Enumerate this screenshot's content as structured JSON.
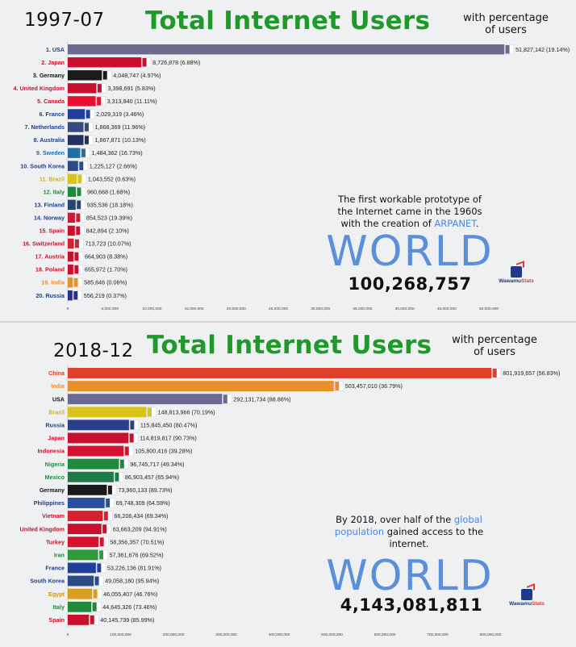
{
  "chart_data": [
    {
      "type": "bar",
      "orientation": "horizontal",
      "period": "1997-07",
      "title": "Total Internet Users",
      "subtitle": "with percentage of users",
      "annotation": {
        "before": "The first workable prototype of the Internet came in the 1960s with the creation of ",
        "highlight": "ARPANET",
        "after": "."
      },
      "world_label": "WORLD",
      "world_total": "100,268,757",
      "brand": "WawamuStats",
      "xlim": [
        0,
        50000000
      ],
      "x_ticks": [
        "0",
        "5,000,000",
        "10,000,000",
        "15,000,000",
        "20,000,000",
        "25,000,000",
        "30,000,000",
        "35,000,000",
        "40,000,000",
        "45,000,000",
        "50,000,000"
      ],
      "categories": [
        "1. USA",
        "2. Japan",
        "3. Germany",
        "4. United Kingdom",
        "5. Canada",
        "6. France",
        "7. Netherlands",
        "8. Australia",
        "9. Sweden",
        "10. South Korea",
        "11. Brazil",
        "12. Italy",
        "13. Finland",
        "14. Norway",
        "15. Spain",
        "16. Switzerland",
        "17. Austria",
        "18. Poland",
        "19. India",
        "20. Russia"
      ],
      "values": [
        51827142,
        8726878,
        4048747,
        3398691,
        3313840,
        2029319,
        1868369,
        1867871,
        1484362,
        1225127,
        1043552,
        960668,
        935536,
        854523,
        842894,
        713723,
        664903,
        655972,
        585646,
        556219
      ],
      "value_labels": [
        "51,827,142 (19.14%)",
        "8,726,878 (6.88%)",
        "4,048,747 (4.97%)",
        "3,398,691 (5.83%)",
        "3,313,840 (11.11%)",
        "2,029,319 (3.46%)",
        "1,868,369 (11.96%)",
        "1,867,871 (10.13%)",
        "1,484,362 (16.73%)",
        "1,225,127 (2.66%)",
        "1,043,552 (0.63%)",
        "960,668 (1.68%)",
        "935,536 (18.18%)",
        "854,523 (19.39%)",
        "842,894 (2.10%)",
        "713,723 (10.07%)",
        "664,903 (8.38%)",
        "655,972 (1.70%)",
        "585,646 (0.06%)",
        "556,219 (0.37%)"
      ],
      "colors": [
        "#6a6a92",
        "#c8102e",
        "#1a1a1a",
        "#c8102e",
        "#e8102e",
        "#1f3f9a",
        "#344a80",
        "#23305f",
        "#1f6fa8",
        "#2b4a86",
        "#d8c31a",
        "#1f8a3c",
        "#24466f",
        "#c21e3a",
        "#c8102e",
        "#d6202e",
        "#c8102e",
        "#c8102e",
        "#e8902a",
        "#27318a"
      ],
      "label_colors": [
        "#1f3f8a",
        "#c8102e",
        "#111111",
        "#c8102e",
        "#c8102e",
        "#1f3f8a",
        "#1f3f8a",
        "#1f3f8a",
        "#1f6fa8",
        "#1f3f8a",
        "#c9b81a",
        "#1f8a3c",
        "#1f3f8a",
        "#1f3f8a",
        "#c8102e",
        "#c8102e",
        "#c8102e",
        "#c8102e",
        "#e8902a",
        "#1f3f8a"
      ],
      "grid": false,
      "legend": "none"
    },
    {
      "type": "bar",
      "orientation": "horizontal",
      "period": "2018-12",
      "title": "Total Internet Users",
      "subtitle": "with percentage of users",
      "annotation": {
        "before": "By 2018, over half of the ",
        "highlight": "global population",
        "after": " gained access to the internet."
      },
      "world_label": "WORLD",
      "world_total": "4,143,081,811",
      "brand": "WawamuStats",
      "xlim": [
        0,
        800000000
      ],
      "x_ticks": [
        "0",
        "100,000,000",
        "200,000,000",
        "300,000,000",
        "400,000,000",
        "500,000,000",
        "600,000,000",
        "700,000,000",
        "800,000,000"
      ],
      "categories": [
        "China",
        "India",
        "USA",
        "Brazil",
        "Russia",
        "Japan",
        "Indonesia",
        "Nigeria",
        "Mexico",
        "Germany",
        "Philippines",
        "Vietnam",
        "United Kingdom",
        "Turkey",
        "Iran",
        "France",
        "South Korea",
        "Egypt",
        "Italy",
        "Spain"
      ],
      "values": [
        801919657,
        503457010,
        292131734,
        148813966,
        115845450,
        114819817,
        105800416,
        96745717,
        86903457,
        73960133,
        69748309,
        66206434,
        63663209,
        58356357,
        57361676,
        53226136,
        49058180,
        46055407,
        44645326,
        40145739
      ],
      "value_labels": [
        "801,919,657 (56.83%)",
        "503,457,010 (36.79%)",
        "292,131,734 (88.86%)",
        "148,813,966 (70.19%)",
        "115,845,450 (80.47%)",
        "114,819,817 (90.73%)",
        "105,800,416 (39.28%)",
        "96,745,717 (49.34%)",
        "86,903,457 (65.94%)",
        "73,960,133 (89.73%)",
        "69,748,309 (64.59%)",
        "66,206,434 (69.34%)",
        "63,663,209 (94.91%)",
        "58,356,357 (70.51%)",
        "57,361,676 (69.52%)",
        "53,226,136 (81.91%)",
        "49,058,180 (95.94%)",
        "46,055,407 (46.76%)",
        "44,645,326 (73.46%)",
        "40,145,739 (85.99%)"
      ],
      "colors": [
        "#e0402a",
        "#e8902a",
        "#6a6a92",
        "#d8c31a",
        "#2b3f8a",
        "#c8102e",
        "#d6102e",
        "#1f8a3c",
        "#1f7a4a",
        "#1a1a1a",
        "#2b4fa0",
        "#d8202e",
        "#c8102e",
        "#d6102e",
        "#2e9a3c",
        "#1f3f9a",
        "#2b4a86",
        "#d8a020",
        "#1f8a3c",
        "#c8102e"
      ],
      "label_colors": [
        "#d6402a",
        "#e8902a",
        "#111111",
        "#c9b81a",
        "#1f3f8a",
        "#c8102e",
        "#c8102e",
        "#1f8a3c",
        "#1f8a3c",
        "#111111",
        "#1f3f8a",
        "#c8102e",
        "#c8102e",
        "#c8102e",
        "#1f8a3c",
        "#1f3f8a",
        "#1f3f8a",
        "#c9961a",
        "#1f8a3c",
        "#c8102e"
      ],
      "grid": false,
      "legend": "none"
    }
  ]
}
